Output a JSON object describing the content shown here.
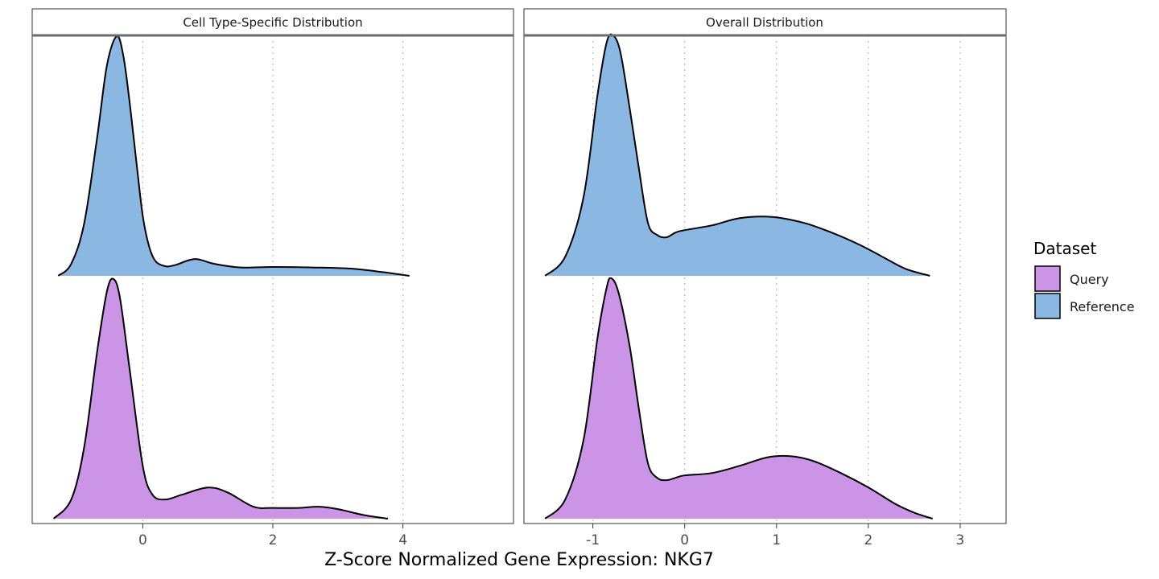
{
  "chart_data": {
    "type": "area",
    "subtype": "ridgeline-density",
    "xlabel": "Z-Score Normalized Gene Expression: NKG7",
    "ylabel": "",
    "grid": "vertical dotted at major ticks",
    "legend": {
      "title": "Dataset",
      "position": "right",
      "entries": [
        {
          "name": "Query",
          "color": "#CC94E6"
        },
        {
          "name": "Reference",
          "color": "#8AB8E3"
        }
      ]
    },
    "panels": [
      {
        "title": "Cell Type-Specific Distribution",
        "xlim": [
          -1.7,
          5.7
        ],
        "xticks": [
          "0",
          "2",
          "4"
        ],
        "xtick_values": [
          0,
          2,
          4
        ],
        "rows": [
          {
            "series": "Reference",
            "x": [
              -1.3,
              -1.1,
              -0.9,
              -0.7,
              -0.55,
              -0.4,
              -0.3,
              -0.2,
              -0.1,
              0.0,
              0.1,
              0.2,
              0.35,
              0.5,
              0.8,
              1.1,
              1.5,
              2.0,
              2.6,
              3.2,
              3.7,
              4.1
            ],
            "density": [
              0.0,
              0.05,
              0.22,
              0.58,
              0.88,
              1.0,
              0.92,
              0.72,
              0.48,
              0.25,
              0.12,
              0.06,
              0.04,
              0.045,
              0.07,
              0.05,
              0.035,
              0.037,
              0.035,
              0.03,
              0.015,
              0.0
            ]
          },
          {
            "series": "Query",
            "x": [
              -1.37,
              -1.1,
              -0.9,
              -0.7,
              -0.55,
              -0.45,
              -0.35,
              -0.2,
              0.0,
              0.15,
              0.35,
              0.6,
              1.0,
              1.3,
              1.7,
              2.0,
              2.4,
              2.7,
              3.0,
              3.4,
              3.77
            ],
            "density": [
              0.0,
              0.08,
              0.3,
              0.7,
              0.95,
              1.0,
              0.92,
              0.62,
              0.22,
              0.1,
              0.08,
              0.1,
              0.13,
              0.11,
              0.05,
              0.045,
              0.045,
              0.05,
              0.04,
              0.015,
              0.0
            ]
          }
        ]
      },
      {
        "title": "Overall Distribution",
        "xlim": [
          -1.75,
          3.5
        ],
        "xticks": [
          "-1",
          "0",
          "1",
          "2",
          "3"
        ],
        "xtick_values": [
          -1,
          0,
          1,
          2,
          3
        ],
        "rows": [
          {
            "series": "Reference",
            "x": [
              -1.52,
              -1.3,
              -1.1,
              -0.95,
              -0.85,
              -0.78,
              -0.7,
              -0.6,
              -0.5,
              -0.4,
              -0.3,
              -0.2,
              -0.1,
              0.0,
              0.3,
              0.6,
              0.95,
              1.3,
              1.6,
              1.9,
              2.15,
              2.4,
              2.67
            ],
            "density": [
              0.0,
              0.08,
              0.33,
              0.75,
              0.97,
              1.0,
              0.93,
              0.7,
              0.45,
              0.22,
              0.17,
              0.16,
              0.18,
              0.19,
              0.21,
              0.24,
              0.245,
              0.22,
              0.18,
              0.13,
              0.08,
              0.03,
              0.0
            ]
          },
          {
            "series": "Query",
            "x": [
              -1.52,
              -1.3,
              -1.1,
              -0.95,
              -0.85,
              -0.8,
              -0.72,
              -0.6,
              -0.5,
              -0.4,
              -0.3,
              -0.2,
              -0.1,
              0.0,
              0.3,
              0.6,
              0.9,
              1.15,
              1.4,
              1.7,
              2.0,
              2.3,
              2.5,
              2.7
            ],
            "density": [
              0.0,
              0.08,
              0.33,
              0.75,
              0.96,
              1.0,
              0.94,
              0.72,
              0.46,
              0.23,
              0.17,
              0.16,
              0.17,
              0.18,
              0.19,
              0.22,
              0.255,
              0.26,
              0.24,
              0.19,
              0.13,
              0.06,
              0.025,
              0.0
            ]
          }
        ]
      }
    ]
  }
}
